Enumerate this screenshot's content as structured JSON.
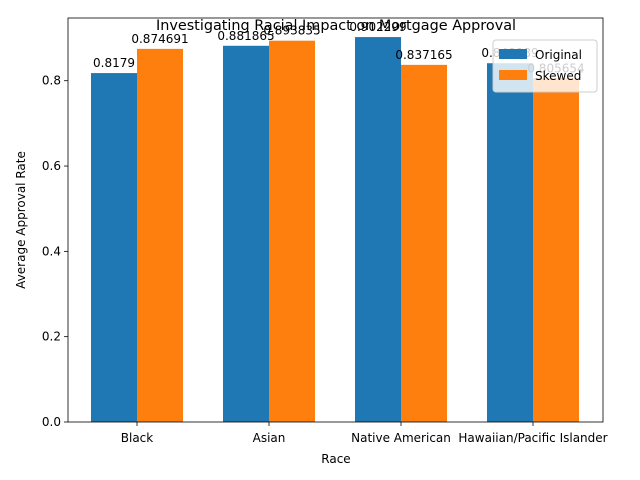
{
  "chart_data": {
    "type": "bar",
    "title": "Investigating Racial Impact on Mortgage Approval",
    "xlabel": "Race",
    "ylabel": "Average Approval Rate",
    "categories": [
      "Black",
      "Asian",
      "Native American",
      "Hawaiian/Pacific Islander"
    ],
    "series": [
      {
        "name": "Original",
        "color": "#1f77b4",
        "values": [
          0.8179,
          0.881865,
          0.902299,
          0.840989
        ],
        "labels": [
          "0.8179",
          "0.881865",
          "0.902299",
          "0.840989"
        ]
      },
      {
        "name": "Skewed",
        "color": "#ff7f0e",
        "values": [
          0.874691,
          0.893835,
          0.837165,
          0.805654
        ],
        "labels": [
          "0.874691",
          "0.893835",
          "0.837165",
          "0.805654"
        ]
      }
    ],
    "ylim": [
      0,
      0.947
    ],
    "yticks": [
      "0.0",
      "0.2",
      "0.4",
      "0.6",
      "0.8"
    ],
    "ytick_values": [
      0.0,
      0.2,
      0.4,
      0.6,
      0.8
    ],
    "grid": false,
    "legend_position": "upper right"
  }
}
